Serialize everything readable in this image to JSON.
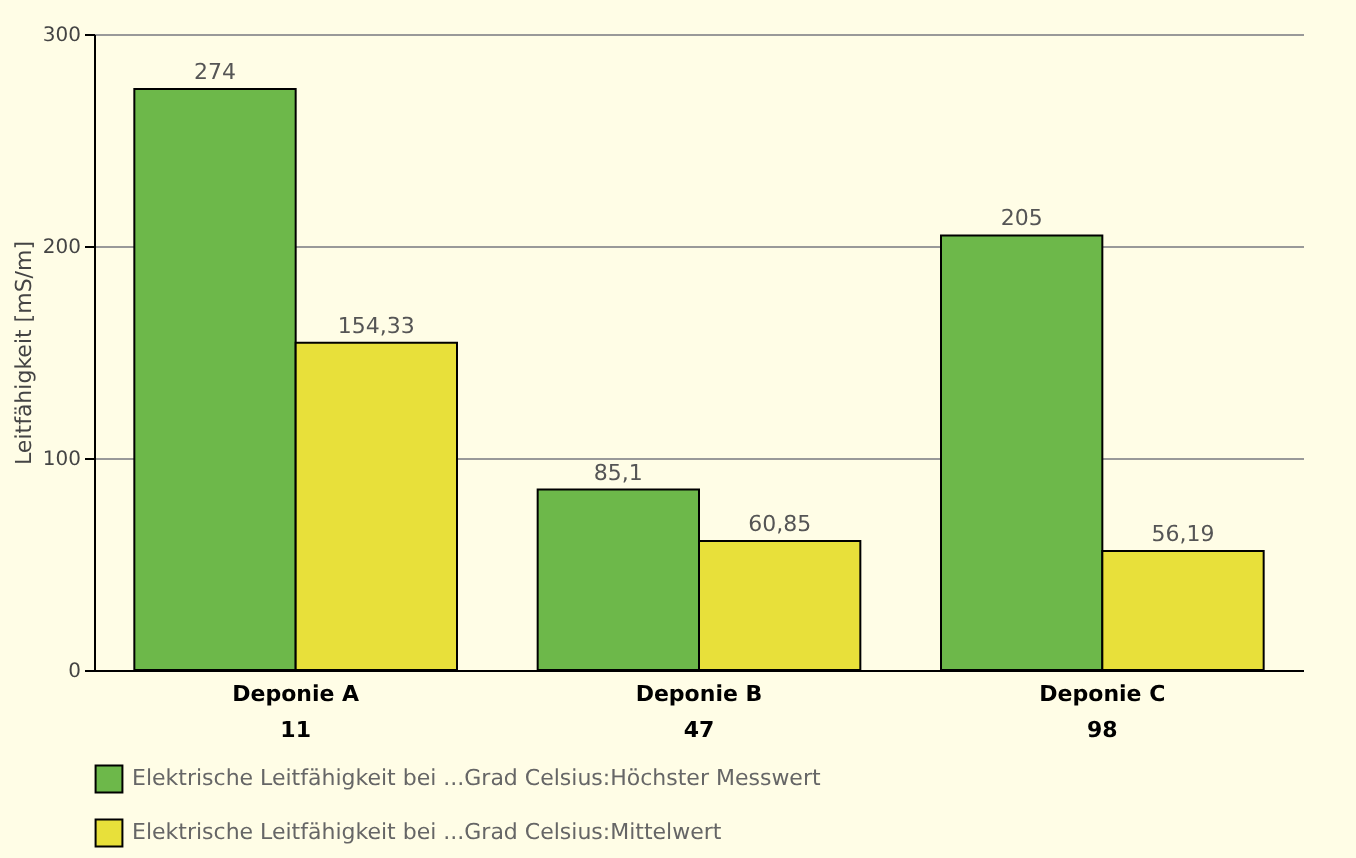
{
  "chart_data": {
    "type": "bar",
    "ylabel": "Leitfähigkeit [mS/m]",
    "categories": [
      "Deponie A\n11",
      "Deponie B\n47",
      "Deponie C\n98"
    ],
    "series": [
      {
        "name": "Elektrische Leitfähigkeit bei ...Grad Celsius:Höchster Messwert",
        "color": "#6db84a",
        "values": [
          274,
          85.1,
          205
        ],
        "value_labels": [
          "274",
          "85,1",
          "205"
        ]
      },
      {
        "name": "Elektrische Leitfähigkeit bei ...Grad Celsius:Mittelwert",
        "color": "#e8e03a",
        "values": [
          154.33,
          60.85,
          56.19
        ],
        "value_labels": [
          "154,33",
          "60,85",
          "56,19"
        ]
      }
    ],
    "ylim": [
      0,
      300
    ],
    "yticks": [
      0,
      100,
      200,
      300
    ],
    "grid": "y",
    "legend": "bottom"
  }
}
